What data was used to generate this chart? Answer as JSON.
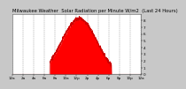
{
  "title": "Milwaukee Weather  Solar Radiation per Minute W/m2  (Last 24 Hours)",
  "title_fontsize": 3.8,
  "background_color": "#c8c8c8",
  "plot_bg_color": "#ffffff",
  "fill_color": "#ff0000",
  "line_color": "#cc0000",
  "ylim": [
    0,
    900
  ],
  "ytick_positions": [
    0,
    100,
    200,
    300,
    400,
    500,
    600,
    700,
    800
  ],
  "ytick_labels": [
    "0",
    "1",
    "2",
    "3",
    "4",
    "5",
    "6",
    "7",
    "8"
  ],
  "xlabel_fontsize": 3.0,
  "ylabel_fontsize": 3.0,
  "grid_color": "#888888",
  "grid_style": "--",
  "grid_linewidth": 0.3,
  "num_points": 1440,
  "peak_hour": 12.5,
  "peak_value": 830,
  "spread_hours": 3.2,
  "start_hour": 7.0,
  "end_hour": 18.5,
  "xtick_hours": [
    0,
    2,
    4,
    6,
    8,
    10,
    12,
    14,
    16,
    18,
    20,
    22,
    24
  ],
  "xtick_labels": [
    "12a",
    "2a",
    "4a",
    "6a",
    "8a",
    "10a",
    "12p",
    "2p",
    "4p",
    "6p",
    "8p",
    "10p",
    "12a"
  ]
}
